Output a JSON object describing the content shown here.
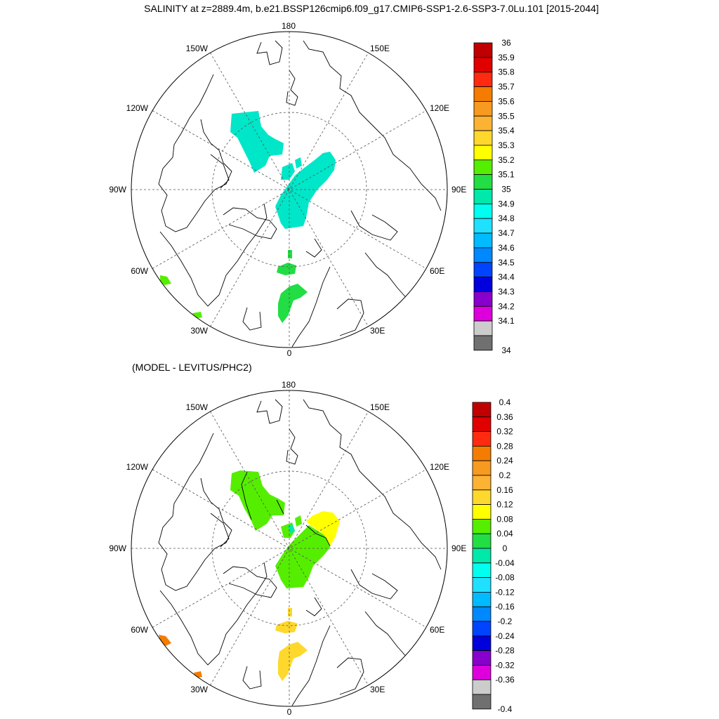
{
  "title": "SALINITY at z=2889.4m, b.e21.BSSP126cmip6.f09_g17.CMIP6-SSP1-2.6-SSP3-7.0Lu.101 [2015-2044]",
  "diff_title": "(MODEL - LEVITUS/PHC2)",
  "lon_labels": {
    "top": "180",
    "bottom": "0",
    "left": "90W",
    "right": "90E",
    "ul1": "150W",
    "ul2": "120W",
    "ll1": "60W",
    "ll2": "30W",
    "ur1": "150E",
    "ur2": "120E",
    "lr1": "60E",
    "lr2": "30E"
  },
  "colorbars": [
    {
      "name": "salinity",
      "labels": [
        "36",
        "35.9",
        "35.8",
        "35.7",
        "35.6",
        "35.5",
        "35.4",
        "35.3",
        "35.2",
        "35.1",
        "35",
        "34.9",
        "34.8",
        "34.7",
        "34.6",
        "34.5",
        "34.4",
        "34.3",
        "34.2",
        "34.1",
        "34"
      ],
      "colors": [
        "#c00000",
        "#e00000",
        "#ff2a10",
        "#f47c00",
        "#f79a20",
        "#fcb232",
        "#fed82c",
        "#ffff00",
        "#55ee00",
        "#22dd44",
        "#00e8aa",
        "#00ffee",
        "#20e0ff",
        "#00bbff",
        "#0088ff",
        "#0044ff",
        "#0000dd",
        "#8800cc",
        "#dd00dd",
        "#cccccc",
        "#707070"
      ]
    },
    {
      "name": "difference",
      "labels": [
        "0.4",
        "0.36",
        "0.32",
        "0.28",
        "0.24",
        "0.2",
        "0.16",
        "0.12",
        "0.08",
        "0.04",
        "0",
        "-0.04",
        "-0.08",
        "-0.12",
        "-0.16",
        "-0.2",
        "-0.24",
        "-0.28",
        "-0.32",
        "-0.36",
        "-0.4"
      ],
      "colors": [
        "#c00000",
        "#e00000",
        "#ff2a10",
        "#f47c00",
        "#f79a20",
        "#fcb232",
        "#fed82c",
        "#ffff00",
        "#55ee00",
        "#22dd44",
        "#00e8aa",
        "#00ffee",
        "#20e0ff",
        "#00bbff",
        "#0088ff",
        "#0044ff",
        "#0000dd",
        "#8800cc",
        "#dd00dd",
        "#cccccc",
        "#707070"
      ]
    }
  ],
  "colors": {
    "salinity_fill": "#00e6c8",
    "salinity_green": "#22dd44",
    "salinity_lightgreen": "#55ee00",
    "diff_green": "#55ee00",
    "diff_yellow": "#ffff00",
    "diff_gold": "#fed82c",
    "diff_orange": "#f47c00",
    "diff_cyan": "#00e8aa"
  }
}
